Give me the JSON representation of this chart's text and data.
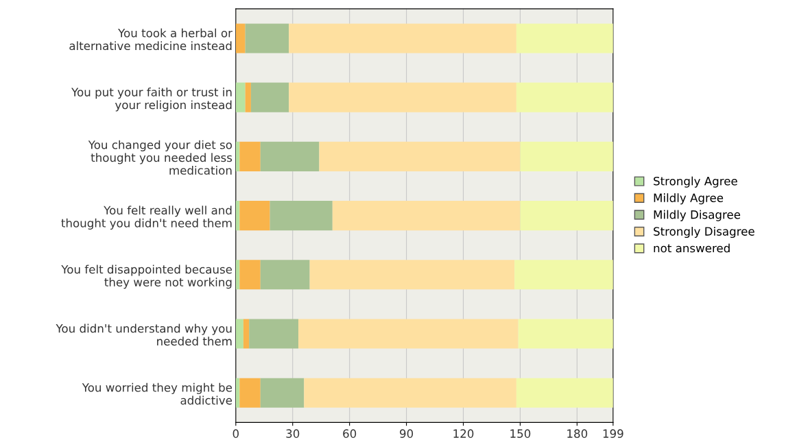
{
  "chart_data": {
    "type": "bar",
    "orientation": "horizontal",
    "stacked": true,
    "categories": [
      "You took a herbal or\nalternative medicine instead",
      "You put your faith or trust in\nyour religion instead",
      "You changed your diet so\nthought you needed less\nmedication",
      "You felt really well and\nthought you didn't need them",
      "You felt disappointed because\nthey were not working",
      "You didn't understand why you\nneeded them",
      "You worried they might be\naddictive"
    ],
    "series": [
      {
        "name": "Strongly Agree",
        "color": "#b8e3a2",
        "values": [
          0,
          5,
          2,
          2,
          2,
          4,
          2
        ]
      },
      {
        "name": "Mildly Agree",
        "color": "#f9b44b",
        "values": [
          5,
          3,
          11,
          16,
          11,
          3,
          11
        ]
      },
      {
        "name": "Mildly Disagree",
        "color": "#a7c293",
        "values": [
          23,
          20,
          31,
          33,
          26,
          26,
          23
        ]
      },
      {
        "name": "Strongly Disagree",
        "color": "#fee0a0",
        "values": [
          120,
          120,
          106,
          99,
          108,
          116,
          112
        ]
      },
      {
        "name": "not answered",
        "color": "#f1f9a8",
        "values": [
          51,
          51,
          49,
          49,
          52,
          50,
          51
        ]
      }
    ],
    "xlim": [
      0,
      199
    ],
    "xticks": [
      0,
      30,
      60,
      90,
      120,
      150,
      180,
      199
    ],
    "grid": "x",
    "legend": "right"
  }
}
